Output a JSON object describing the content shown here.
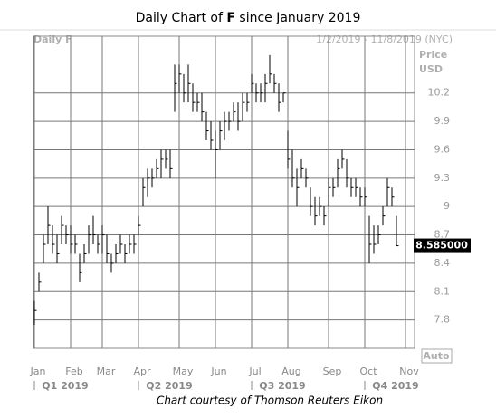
{
  "chart_data": {
    "type": "ohlc",
    "title": "Daily Chart of F since January 2019",
    "title_bold": "F",
    "subtitle_left": "Daily F",
    "subtitle_right": "1/2/2019 - 11/8/2019 (NYC)",
    "y_axis_label": [
      "Price",
      "USD"
    ],
    "scale_button": "Auto",
    "caption": "Chart courtesy of Thomson Reuters Eikon",
    "quarters": [
      "Q1 2019",
      "Q2 2019",
      "Q3 2019",
      "Q4 2019"
    ],
    "categories": [
      "Jan",
      null,
      null,
      null,
      null,
      null,
      null,
      null,
      "Feb",
      null,
      null,
      null,
      null,
      null,
      null,
      "Mar",
      null,
      null,
      null,
      null,
      null,
      null,
      null,
      "Apr",
      null,
      null,
      null,
      null,
      null,
      null,
      null,
      null,
      "May",
      null,
      null,
      null,
      null,
      null,
      null,
      null,
      "Jun",
      null,
      null,
      null,
      null,
      null,
      null,
      null,
      "Jul",
      null,
      null,
      null,
      null,
      null,
      null,
      null,
      "Aug",
      null,
      null,
      null,
      null,
      null,
      null,
      null,
      null,
      "Sep",
      null,
      null,
      null,
      null,
      null,
      null,
      null,
      "Oct",
      null,
      null,
      null,
      null,
      null,
      null,
      null,
      null,
      "Nov"
    ],
    "high": [
      8.0,
      8.3,
      8.7,
      9.0,
      8.8,
      8.7,
      8.9,
      8.8,
      8.8,
      8.7,
      8.5,
      8.6,
      8.8,
      8.9,
      8.7,
      8.8,
      8.7,
      8.5,
      8.6,
      8.7,
      8.6,
      8.7,
      8.7,
      8.9,
      9.3,
      9.4,
      9.4,
      9.5,
      9.6,
      9.6,
      9.6,
      10.5,
      10.5,
      10.4,
      10.5,
      10.3,
      10.2,
      10.2,
      10.0,
      9.9,
      9.8,
      9.9,
      10.0,
      10.0,
      10.1,
      10.1,
      10.2,
      10.2,
      10.4,
      10.3,
      10.3,
      10.4,
      10.6,
      10.4,
      10.3,
      10.2,
      9.8,
      9.6,
      9.4,
      9.5,
      9.4,
      9.2,
      9.1,
      9.1,
      9.0,
      9.3,
      9.3,
      9.5,
      9.6,
      9.5,
      9.3,
      9.3,
      9.2,
      9.2,
      8.9,
      8.8,
      8.8,
      9.0,
      9.3,
      9.2,
      8.9,
      null,
      null
    ],
    "low": [
      7.75,
      8.1,
      8.4,
      8.6,
      8.5,
      8.4,
      8.6,
      8.6,
      8.5,
      8.5,
      8.2,
      8.4,
      8.5,
      8.6,
      8.5,
      8.5,
      8.4,
      8.3,
      8.4,
      8.5,
      8.4,
      8.5,
      8.5,
      8.7,
      9.0,
      9.1,
      9.2,
      9.3,
      9.3,
      9.4,
      9.3,
      10.0,
      10.2,
      10.1,
      10.1,
      10.0,
      10.0,
      9.9,
      9.7,
      9.6,
      9.3,
      9.6,
      9.7,
      9.8,
      9.9,
      9.8,
      9.9,
      10.0,
      10.2,
      10.1,
      10.1,
      10.1,
      10.3,
      10.2,
      10.0,
      10.1,
      9.4,
      9.2,
      9.0,
      9.3,
      9.2,
      8.9,
      8.8,
      8.9,
      8.8,
      9.0,
      9.1,
      9.2,
      9.4,
      9.2,
      9.1,
      9.1,
      9.0,
      9.0,
      8.4,
      8.5,
      8.6,
      8.8,
      9.0,
      9.0,
      8.585,
      null,
      null
    ],
    "close": [
      7.9,
      8.2,
      8.6,
      8.8,
      8.6,
      8.5,
      8.8,
      8.7,
      8.6,
      8.6,
      8.3,
      8.5,
      8.7,
      8.7,
      8.6,
      8.7,
      8.5,
      8.4,
      8.5,
      8.6,
      8.5,
      8.6,
      8.6,
      8.8,
      9.2,
      9.3,
      9.3,
      9.4,
      9.5,
      9.5,
      9.4,
      10.3,
      10.4,
      10.2,
      10.3,
      10.1,
      10.1,
      10.0,
      9.8,
      9.7,
      9.6,
      9.8,
      9.9,
      9.9,
      10.0,
      9.9,
      10.1,
      10.1,
      10.3,
      10.2,
      10.2,
      10.3,
      10.4,
      10.3,
      10.1,
      10.2,
      9.5,
      9.3,
      9.2,
      9.4,
      9.3,
      9.0,
      8.9,
      9.0,
      8.9,
      9.2,
      9.2,
      9.4,
      9.5,
      9.3,
      9.2,
      9.2,
      9.1,
      9.1,
      8.6,
      8.6,
      8.7,
      8.9,
      9.2,
      9.1,
      8.585,
      null,
      null
    ],
    "color": "#000000",
    "ylim": [
      7.5,
      10.8
    ],
    "yticks": [
      7.8,
      8.1,
      8.4,
      8.7,
      9,
      9.3,
      9.6,
      9.9,
      10.2
    ],
    "grid": true,
    "last_value": 8.585,
    "last_value_label": "8.585000"
  }
}
